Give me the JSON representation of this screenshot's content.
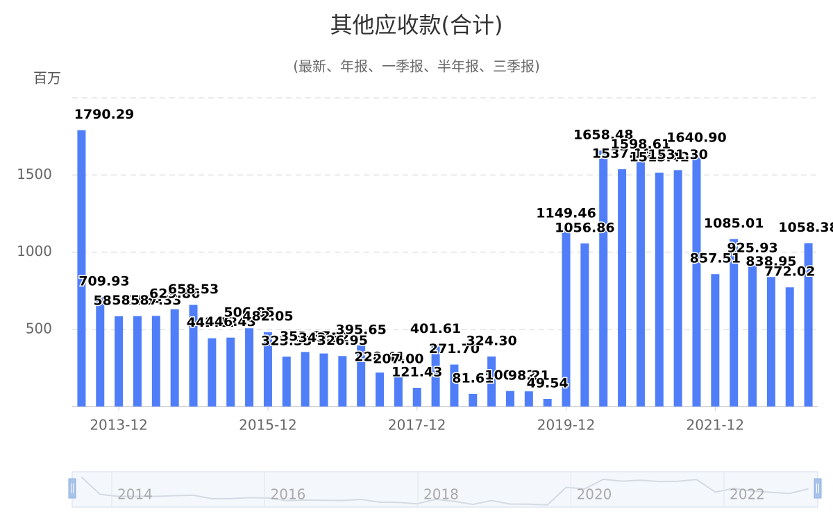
{
  "chart_data": {
    "type": "bar",
    "title": "其他应收款(合计)",
    "subtitle": "(最新、年报、一季报、半年报、三季报)",
    "y_axis_label": "百万",
    "color": "#4f7ef8",
    "grid": true,
    "categories": [
      null,
      null,
      "2013-12",
      null,
      null,
      null,
      null,
      null,
      null,
      null,
      "2015-12",
      null,
      null,
      null,
      null,
      null,
      null,
      null,
      "2017-12",
      null,
      null,
      null,
      null,
      null,
      null,
      null,
      "2019-12",
      null,
      null,
      null,
      null,
      null,
      null,
      null,
      "2021-12",
      null,
      null,
      null,
      null,
      null
    ],
    "values": [
      1790.29,
      709.93,
      585.21,
      585.64,
      587.33,
      629.86,
      658.53,
      442.18,
      446.43,
      506.85,
      482.05,
      323.35,
      353.37,
      343.52,
      326.95,
      395.65,
      220.41,
      207.0,
      121.43,
      401.61,
      271.7,
      81.61,
      324.3,
      100.62,
      98.21,
      49.54,
      1149.46,
      1056.86,
      1658.48,
      1537.15,
      1598.61,
      1515.42,
      1531.3,
      1640.9,
      857.51,
      1085.01,
      925.93,
      838.95,
      772.02,
      1058.38
    ],
    "value_labels": [
      "1790.29",
      "709.93",
      "585.21",
      "585.64",
      "587.33",
      "629.86",
      "658.53",
      "442.18",
      "446.43",
      "506.85",
      "482.05",
      "323.35",
      "353.37",
      "343.52",
      "326.95",
      "395.65",
      "220.41",
      "207.00",
      "121.43",
      "401.61",
      "271.70",
      "81.61",
      "324.30",
      "100.62",
      "98.21",
      "49.54",
      "1149.46",
      "1056.86",
      "1658.48",
      "1537.15",
      "1598.61",
      "1515.42",
      "1531.30",
      "1640.90",
      "857.51",
      "1085.01",
      "925.93",
      "838.95",
      "772.02",
      "1058.38"
    ],
    "ylim": [
      0,
      2000
    ],
    "yticks": [
      500,
      1000,
      1500
    ],
    "slider_labels": [
      "2014",
      "2016",
      "2018",
      "2020",
      "2022"
    ]
  }
}
